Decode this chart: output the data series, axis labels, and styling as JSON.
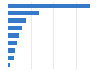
{
  "values": [
    10500,
    3900,
    2300,
    1800,
    1400,
    1150,
    950,
    800,
    280
  ],
  "bar_color": "#3579c8",
  "background_color": "#ffffff",
  "grid_color": "#e0e0e0",
  "xlim": [
    0,
    11500
  ],
  "bar_height": 0.6,
  "n_gridlines": 4
}
